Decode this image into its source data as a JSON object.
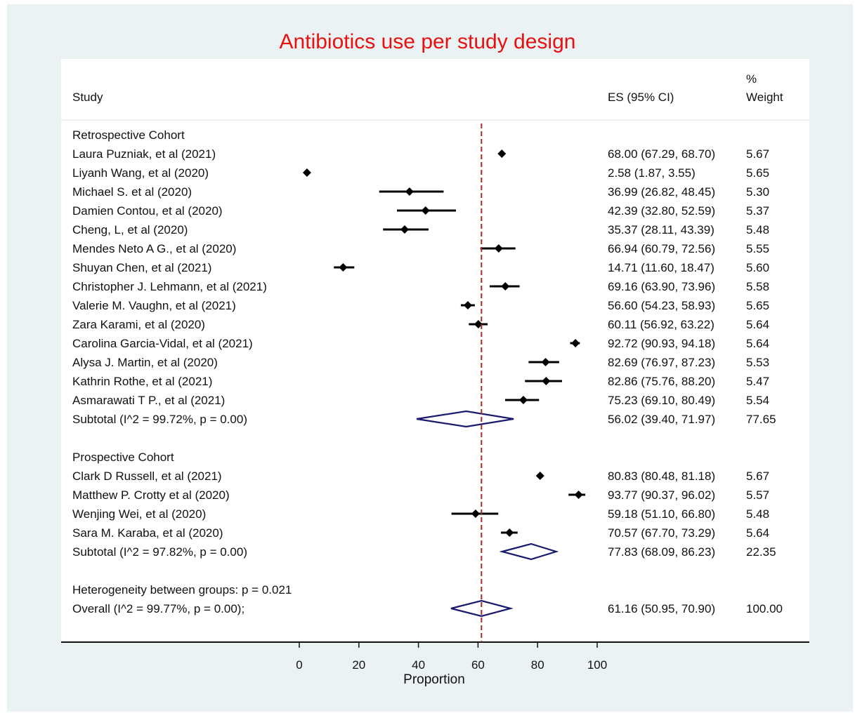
{
  "chart_data": {
    "type": "forest",
    "title": "Antibiotics use per study design",
    "xlabel": "Proportion",
    "xlim": [
      0,
      100
    ],
    "xticks": [
      0,
      20,
      40,
      60,
      80,
      100
    ],
    "reference_line": 61.16,
    "columns": {
      "study": "Study",
      "es": "ES (95% CI)",
      "weight_pct": "%",
      "weight": "Weight"
    },
    "groups": [
      {
        "name": "Retrospective Cohort",
        "studies": [
          {
            "label": "Laura Puzniak, et al (2021)",
            "es": 68.0,
            "lo": 67.29,
            "hi": 68.7,
            "es_text": "68.00 (67.29, 68.70)",
            "weight": "5.67"
          },
          {
            "label": "Liyanh Wang, et al (2020)",
            "es": 2.58,
            "lo": 1.87,
            "hi": 3.55,
            "es_text": "2.58 (1.87, 3.55)",
            "weight": "5.65"
          },
          {
            "label": "Michael S. et al (2020)",
            "es": 36.99,
            "lo": 26.82,
            "hi": 48.45,
            "es_text": "36.99 (26.82, 48.45)",
            "weight": "5.30"
          },
          {
            "label": "Damien Contou, et al (2020)",
            "es": 42.39,
            "lo": 32.8,
            "hi": 52.59,
            "es_text": "42.39 (32.80, 52.59)",
            "weight": "5.37"
          },
          {
            "label": "Cheng, L, et al (2020)",
            "es": 35.37,
            "lo": 28.11,
            "hi": 43.39,
            "es_text": "35.37 (28.11, 43.39)",
            "weight": "5.48"
          },
          {
            "label": "Mendes Neto A G., et al (2020)",
            "es": 66.94,
            "lo": 60.79,
            "hi": 72.56,
            "es_text": "66.94 (60.79, 72.56)",
            "weight": "5.55"
          },
          {
            "label": "Shuyan Chen, et al (2021)",
            "es": 14.71,
            "lo": 11.6,
            "hi": 18.47,
            "es_text": "14.71 (11.60, 18.47)",
            "weight": "5.60"
          },
          {
            "label": "Christopher J. Lehmann, et al (2021)",
            "es": 69.16,
            "lo": 63.9,
            "hi": 73.96,
            "es_text": "69.16 (63.90, 73.96)",
            "weight": "5.58"
          },
          {
            "label": "Valerie M. Vaughn, et al (2021)",
            "es": 56.6,
            "lo": 54.23,
            "hi": 58.93,
            "es_text": "56.60 (54.23, 58.93)",
            "weight": "5.65"
          },
          {
            "label": "Zara Karami, et al (2020)",
            "es": 60.11,
            "lo": 56.92,
            "hi": 63.22,
            "es_text": "60.11 (56.92, 63.22)",
            "weight": "5.64"
          },
          {
            "label": "Carolina Garcia-Vidal, et al (2021)",
            "es": 92.72,
            "lo": 90.93,
            "hi": 94.18,
            "es_text": "92.72 (90.93, 94.18)",
            "weight": "5.64"
          },
          {
            "label": "Alysa J. Martin, et al (2020)",
            "es": 82.69,
            "lo": 76.97,
            "hi": 87.23,
            "es_text": "82.69 (76.97, 87.23)",
            "weight": "5.53"
          },
          {
            "label": "Kathrin Rothe, et al (2021)",
            "es": 82.86,
            "lo": 75.76,
            "hi": 88.2,
            "es_text": "82.86 (75.76, 88.20)",
            "weight": "5.47"
          },
          {
            "label": "Asmarawati T P., et al (2021)",
            "es": 75.23,
            "lo": 69.1,
            "hi": 80.49,
            "es_text": "75.23 (69.10, 80.49)",
            "weight": "5.54"
          }
        ],
        "subtotal": {
          "label": "Subtotal  (I^2 = 99.72%, p = 0.00)",
          "es": 56.02,
          "lo": 39.4,
          "hi": 71.97,
          "es_text": "56.02 (39.40, 71.97)",
          "weight": "77.65"
        }
      },
      {
        "name": "Prospective Cohort",
        "studies": [
          {
            "label": "Clark D Russell, et al (2021)",
            "es": 80.83,
            "lo": 80.48,
            "hi": 81.18,
            "es_text": "80.83 (80.48, 81.18)",
            "weight": "5.67"
          },
          {
            "label": "Matthew P. Crotty et al (2020)",
            "es": 93.77,
            "lo": 90.37,
            "hi": 96.02,
            "es_text": "93.77 (90.37, 96.02)",
            "weight": "5.57"
          },
          {
            "label": "Wenjing Wei, et al (2020)",
            "es": 59.18,
            "lo": 51.1,
            "hi": 66.8,
            "es_text": "59.18 (51.10, 66.80)",
            "weight": "5.48"
          },
          {
            "label": "Sara M. Karaba, et al (2020)",
            "es": 70.57,
            "lo": 67.7,
            "hi": 73.29,
            "es_text": "70.57 (67.70, 73.29)",
            "weight": "5.64"
          }
        ],
        "subtotal": {
          "label": "Subtotal  (I^2 = 97.82%, p = 0.00)",
          "es": 77.83,
          "lo": 68.09,
          "hi": 86.23,
          "es_text": "77.83 (68.09, 86.23)",
          "weight": "22.35"
        }
      }
    ],
    "heterogeneity": "Heterogeneity between groups: p = 0.021",
    "overall": {
      "label": "Overall  (I^2 = 99.77%, p = 0.00);",
      "es": 61.16,
      "lo": 50.95,
      "hi": 70.9,
      "es_text": "61.16 (50.95, 70.90)",
      "weight": "100.00"
    },
    "colors": {
      "title": "#e8110f",
      "reference_line": "#a52a2a",
      "diamond": "#1a1a6e",
      "marker": "#000000",
      "background": "#eaf2f3"
    }
  }
}
